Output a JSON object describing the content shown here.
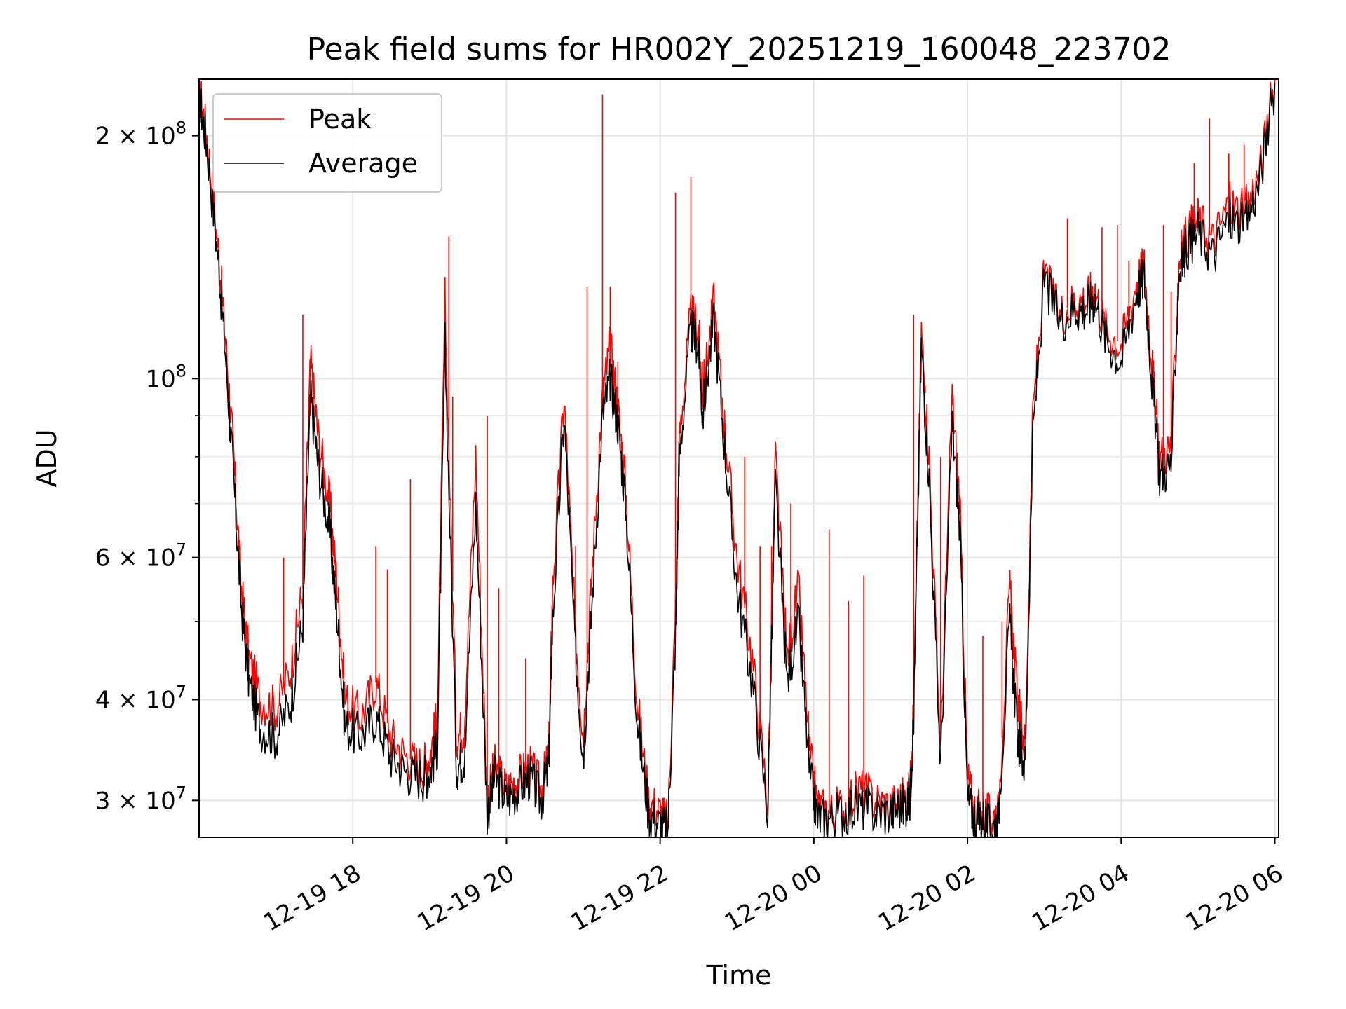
{
  "chart_data": {
    "type": "line",
    "title": "Peak field sums for HR002Y_20251219_160048_223702",
    "xlabel": "Time",
    "ylabel": "ADU",
    "yscale": "log",
    "ylim": [
      27000000,
      235000000
    ],
    "xlim_hours": [
      16.0,
      30.05
    ],
    "grid": true,
    "legend_position": "top-left",
    "x_ticks": [
      {
        "hour": 18,
        "label": "12-19 18"
      },
      {
        "hour": 20,
        "label": "12-19 20"
      },
      {
        "hour": 22,
        "label": "12-19 22"
      },
      {
        "hour": 24,
        "label": "12-20 00"
      },
      {
        "hour": 26,
        "label": "12-20 02"
      },
      {
        "hour": 28,
        "label": "12-20 04"
      },
      {
        "hour": 30,
        "label": "12-20 06"
      }
    ],
    "y_major_ticks": [
      {
        "value": 30000000,
        "base": "3",
        "exp": "7"
      },
      {
        "value": 40000000,
        "base": "4",
        "exp": "7"
      },
      {
        "value": 60000000,
        "base": "6",
        "exp": "7"
      },
      {
        "value": 100000000,
        "base": "",
        "exp": "8"
      },
      {
        "value": 200000000,
        "base": "2",
        "exp": "8"
      }
    ],
    "y_minor_ticks": [
      50000000,
      70000000,
      80000000,
      90000000
    ],
    "series": [
      {
        "name": "Peak",
        "color": "#ff0000",
        "x_hours": [
          16.0,
          16.1,
          16.25,
          16.35,
          16.45,
          16.55,
          16.65,
          16.8,
          17.0,
          17.2,
          17.35,
          17.45,
          17.55,
          17.7,
          17.8,
          17.9,
          18.1,
          18.3,
          18.5,
          18.7,
          18.9,
          19.0,
          19.1,
          19.2,
          19.35,
          19.45,
          19.6,
          19.75,
          19.85,
          20.0,
          20.15,
          20.3,
          20.45,
          20.55,
          20.6,
          20.75,
          20.9,
          21.0,
          21.1,
          21.25,
          21.35,
          21.45,
          21.55,
          21.7,
          21.85,
          22.0,
          22.1,
          22.2,
          22.25,
          22.4,
          22.5,
          22.55,
          22.7,
          22.85,
          23.0,
          23.2,
          23.4,
          23.5,
          23.65,
          23.8,
          23.95,
          24.05,
          24.2,
          24.4,
          24.6,
          24.8,
          25.0,
          25.15,
          25.25,
          25.3,
          25.4,
          25.5,
          25.65,
          25.8,
          25.9,
          26.0,
          26.1,
          26.2,
          26.3,
          26.4,
          26.55,
          26.65,
          26.75,
          26.85,
          27.0,
          27.2,
          27.4,
          27.55,
          27.65,
          27.8,
          28.0,
          28.2,
          28.3,
          28.4,
          28.5,
          28.65,
          28.75,
          28.85,
          29.0,
          29.2,
          29.4,
          29.6,
          29.8,
          30.0
        ],
        "values": [
          230000000,
          200000000,
          145000000,
          110000000,
          80000000,
          55000000,
          45000000,
          40000000,
          39000000,
          44000000,
          55000000,
          105000000,
          85000000,
          70000000,
          55000000,
          40000000,
          38000000,
          42000000,
          36000000,
          34000000,
          33000000,
          34000000,
          38000000,
          125000000,
          36000000,
          37000000,
          80000000,
          30000000,
          33000000,
          31000000,
          32000000,
          33000000,
          31000000,
          34000000,
          55000000,
          95000000,
          48000000,
          36000000,
          55000000,
          95000000,
          110000000,
          92000000,
          74000000,
          40000000,
          30000000,
          29000000,
          28000000,
          52000000,
          85000000,
          120000000,
          115000000,
          95000000,
          125000000,
          85000000,
          60000000,
          45000000,
          30000000,
          80000000,
          45000000,
          55000000,
          34000000,
          29500000,
          29000000,
          29500000,
          31000000,
          30000000,
          29500000,
          30000000,
          30500000,
          40000000,
          115000000,
          80000000,
          35000000,
          95000000,
          70000000,
          32000000,
          29000000,
          29000000,
          28500000,
          29000000,
          55000000,
          40000000,
          35000000,
          90000000,
          135000000,
          120000000,
          125000000,
          125000000,
          130000000,
          115000000,
          110000000,
          132000000,
          138000000,
          105000000,
          80000000,
          82000000,
          140000000,
          150000000,
          158000000,
          148000000,
          165000000,
          160000000,
          180000000,
          235000000
        ],
        "spike_hours": [
          17.1,
          17.35,
          17.45,
          18.3,
          18.45,
          18.75,
          19.25,
          19.3,
          19.75,
          19.9,
          20.25,
          20.9,
          21.05,
          21.25,
          21.35,
          21.45,
          22.2,
          22.4,
          22.55,
          22.85,
          23.1,
          23.3,
          23.45,
          23.7,
          24.2,
          24.45,
          24.65,
          25.3,
          25.45,
          25.65,
          26.2,
          26.45,
          27.3,
          27.75,
          27.95,
          28.1,
          28.55,
          28.65,
          28.95,
          29.15,
          29.4,
          29.6
        ],
        "spike_values": [
          60000000,
          120000000,
          90000000,
          62000000,
          58000000,
          75000000,
          150000000,
          95000000,
          90000000,
          55000000,
          45000000,
          62000000,
          130000000,
          225000000,
          130000000,
          105000000,
          170000000,
          178000000,
          105000000,
          88000000,
          80000000,
          62000000,
          62000000,
          70000000,
          65000000,
          53000000,
          57000000,
          120000000,
          98000000,
          80000000,
          48000000,
          50000000,
          158000000,
          154000000,
          155000000,
          140000000,
          155000000,
          128000000,
          185000000,
          210000000,
          190000000,
          195000000
        ]
      },
      {
        "name": "Average",
        "color": "#000000",
        "x_hours": [
          16.0,
          16.1,
          16.25,
          16.35,
          16.45,
          16.55,
          16.65,
          16.8,
          17.0,
          17.2,
          17.35,
          17.45,
          17.55,
          17.7,
          17.8,
          17.9,
          18.1,
          18.3,
          18.5,
          18.7,
          18.9,
          19.0,
          19.1,
          19.2,
          19.35,
          19.45,
          19.6,
          19.75,
          19.85,
          20.0,
          20.15,
          20.3,
          20.45,
          20.55,
          20.6,
          20.75,
          20.9,
          21.0,
          21.1,
          21.25,
          21.35,
          21.45,
          21.55,
          21.7,
          21.85,
          22.0,
          22.1,
          22.2,
          22.25,
          22.4,
          22.5,
          22.55,
          22.7,
          22.85,
          23.0,
          23.2,
          23.4,
          23.5,
          23.65,
          23.8,
          23.95,
          24.05,
          24.2,
          24.4,
          24.6,
          24.8,
          25.0,
          25.15,
          25.25,
          25.3,
          25.4,
          25.5,
          25.65,
          25.8,
          25.9,
          26.0,
          26.1,
          26.2,
          26.3,
          26.4,
          26.55,
          26.65,
          26.75,
          26.85,
          27.0,
          27.2,
          27.4,
          27.55,
          27.65,
          27.8,
          28.0,
          28.2,
          28.3,
          28.4,
          28.5,
          28.65,
          28.75,
          28.85,
          29.0,
          29.2,
          29.4,
          29.6,
          29.8,
          30.0
        ],
        "values": [
          225000000,
          195000000,
          140000000,
          105000000,
          75000000,
          52000000,
          42000000,
          37000000,
          36000000,
          40000000,
          50000000,
          95000000,
          78000000,
          65000000,
          50000000,
          37000000,
          36000000,
          38000000,
          34000000,
          32500000,
          32000000,
          32500000,
          35000000,
          110000000,
          33000000,
          34000000,
          70000000,
          29000000,
          32000000,
          30000000,
          31000000,
          32000000,
          30000000,
          33000000,
          50000000,
          90000000,
          45000000,
          34000000,
          50000000,
          90000000,
          100000000,
          88000000,
          70000000,
          38000000,
          29000000,
          28000000,
          27500000,
          48000000,
          80000000,
          115000000,
          110000000,
          90000000,
          118000000,
          80000000,
          55000000,
          42000000,
          29000000,
          74000000,
          42000000,
          50000000,
          32000000,
          28500000,
          28500000,
          29000000,
          29500000,
          29000000,
          29000000,
          29500000,
          30000000,
          38000000,
          110000000,
          75000000,
          33000000,
          88000000,
          65000000,
          30000000,
          28500000,
          28500000,
          27500000,
          28500000,
          50000000,
          36000000,
          33000000,
          85000000,
          132000000,
          118000000,
          122000000,
          122000000,
          126000000,
          112000000,
          105000000,
          128000000,
          134000000,
          100000000,
          76000000,
          78000000,
          135000000,
          145000000,
          152000000,
          142000000,
          158000000,
          154000000,
          175000000,
          232000000
        ]
      }
    ]
  }
}
